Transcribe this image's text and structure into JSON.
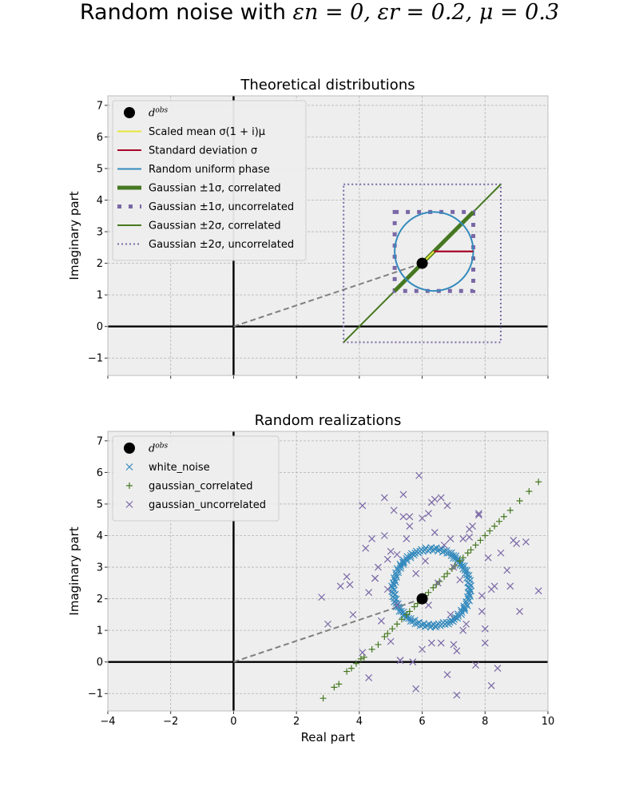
{
  "figure": {
    "title_text": "Random noise with ",
    "title_math": "εn = 0, εr = 0.2, μ = 0.3"
  },
  "chart_data": [
    {
      "type": "line",
      "title": "Theoretical distributions",
      "xlabel": "",
      "ylabel": "Imaginary part",
      "xlim": [
        -4,
        10
      ],
      "ylim": [
        -1.55,
        7.3
      ],
      "xticks": [
        -4,
        -2,
        0,
        2,
        4,
        6,
        8,
        10
      ],
      "yticks": [
        -1,
        0,
        1,
        2,
        3,
        4,
        5,
        6,
        7
      ],
      "show_xtick_labels": false,
      "grid": true,
      "legend_position": "top-left",
      "center": [
        6,
        2
      ],
      "sigma": 1.25,
      "mu": 0.3,
      "circle_radius": 1.25,
      "legend": [
        {
          "key": "dobs",
          "label": "d^obs",
          "color": "#000000",
          "style": "marker"
        },
        {
          "key": "mean",
          "label": "Scaled mean σ(1 + i)μ",
          "color": "#e5e53c",
          "style": "line"
        },
        {
          "key": "std",
          "label": "Standard deviation σ",
          "color": "#a60628",
          "style": "line"
        },
        {
          "key": "uniform",
          "label": "Random uniform phase",
          "color": "#348abd",
          "style": "line"
        },
        {
          "key": "g1c",
          "label": "Gaussian ±1σ, correlated",
          "color": "#467821",
          "style": "thick"
        },
        {
          "key": "g1u",
          "label": "Gaussian ±1σ, uncorrelated",
          "color": "#7a68a6",
          "style": "dotthick"
        },
        {
          "key": "g2c",
          "label": "Gaussian ±2σ, correlated",
          "color": "#467821",
          "style": "line"
        },
        {
          "key": "g2u",
          "label": "Gaussian ±2σ, uncorrelated",
          "color": "#7a68a6",
          "style": "dot"
        }
      ]
    },
    {
      "type": "scatter",
      "title": "Random realizations",
      "xlabel": "Real part",
      "ylabel": "Imaginary part",
      "xlim": [
        -4,
        10
      ],
      "ylim": [
        -1.55,
        7.3
      ],
      "xticks": [
        -4,
        -2,
        0,
        2,
        4,
        6,
        8,
        10
      ],
      "yticks": [
        -1,
        0,
        1,
        2,
        3,
        4,
        5,
        6,
        7
      ],
      "show_xtick_labels": true,
      "grid": true,
      "legend_position": "top-left",
      "center": [
        6,
        2
      ],
      "legend": [
        {
          "key": "dobs",
          "label": "d^obs",
          "color": "#000000",
          "style": "marker"
        },
        {
          "key": "white",
          "label": "white_noise",
          "color": "#348abd",
          "style": "x"
        },
        {
          "key": "gc",
          "label": "gaussian_correlated",
          "color": "#467821",
          "style": "plus"
        },
        {
          "key": "gu",
          "label": "gaussian_uncorrelated",
          "color": "#7a68a6",
          "style": "x"
        }
      ],
      "series": [
        {
          "name": "white_noise",
          "shape": "ring",
          "center": [
            6.3,
            2.35
          ],
          "radius": 1.25,
          "count": 150
        },
        {
          "name": "gaussian_correlated",
          "shape": "line",
          "x": [
            2.85,
            3.2,
            3.35,
            3.6,
            3.75,
            3.9,
            4.05,
            4.15,
            4.4,
            4.6,
            4.8,
            4.9,
            5.05,
            5.2,
            5.35,
            5.5,
            5.6,
            5.75,
            5.85,
            6.0,
            6.1,
            6.2,
            6.35,
            6.45,
            6.55,
            6.7,
            6.8,
            6.95,
            7.05,
            7.2,
            7.3,
            7.45,
            7.55,
            7.7,
            7.85,
            8.0,
            8.15,
            8.3,
            8.45,
            8.6,
            8.8,
            9.1,
            9.4,
            9.7
          ],
          "y": [
            -1.15,
            -0.8,
            -0.7,
            -0.3,
            -0.2,
            -0.05,
            0.1,
            0.15,
            0.4,
            0.55,
            0.8,
            0.9,
            1.05,
            1.2,
            1.35,
            1.5,
            1.6,
            1.75,
            1.85,
            2.0,
            2.1,
            2.2,
            2.35,
            2.45,
            2.55,
            2.7,
            2.8,
            2.95,
            3.05,
            3.2,
            3.3,
            3.45,
            3.55,
            3.7,
            3.85,
            4.0,
            4.15,
            4.3,
            4.45,
            4.6,
            4.8,
            5.1,
            5.4,
            5.7
          ]
        },
        {
          "name": "gaussian_uncorrelated",
          "x": [
            2.8,
            3.0,
            3.4,
            3.6,
            3.8,
            4.1,
            4.2,
            4.3,
            4.4,
            4.5,
            4.6,
            4.7,
            4.8,
            4.9,
            5.0,
            5.1,
            5.2,
            5.3,
            5.4,
            5.5,
            5.6,
            5.7,
            5.8,
            5.9,
            6.0,
            6.1,
            6.2,
            6.3,
            6.4,
            6.5,
            6.6,
            6.7,
            6.8,
            6.9,
            7.0,
            7.1,
            7.2,
            7.3,
            7.4,
            7.5,
            7.6,
            7.7,
            7.8,
            7.9,
            8.0,
            8.1,
            8.2,
            8.3,
            8.5,
            8.7,
            8.9,
            9.1,
            9.3,
            9.7,
            4.1,
            4.5,
            5.4,
            5.8,
            6.0,
            6.3,
            6.8,
            7.0,
            7.3,
            7.8,
            8.2,
            8.8,
            4.8,
            5.2,
            6.6,
            7.5,
            8.0,
            3.7,
            4.3,
            5.6,
            6.2,
            7.1,
            7.9,
            8.4,
            9.0,
            5.0,
            6.9,
            5.3,
            6.4,
            4.9
          ],
          "y": [
            2.05,
            1.2,
            2.4,
            2.7,
            1.5,
            4.95,
            3.6,
            2.2,
            3.9,
            2.65,
            3.0,
            1.3,
            5.2,
            2.3,
            3.5,
            4.8,
            1.8,
            0.05,
            5.3,
            3.9,
            4.3,
            0.0,
            2.8,
            5.9,
            4.55,
            3.2,
            1.8,
            5.05,
            4.1,
            2.5,
            0.6,
            3.7,
            4.95,
            1.5,
            0.55,
            -1.05,
            2.6,
            3.9,
            1.2,
            4.2,
            4.3,
            -0.1,
            4.7,
            2.1,
            0.6,
            3.3,
            -0.75,
            2.4,
            3.45,
            2.9,
            3.85,
            1.6,
            3.8,
            2.25,
            0.3,
            2.65,
            4.6,
            -0.85,
            0.4,
            0.6,
            -0.4,
            3.0,
            1.0,
            4.65,
            2.3,
            2.4,
            4.0,
            3.4,
            5.2,
            3.95,
            1.05,
            2.45,
            -0.5,
            4.6,
            4.7,
            0.35,
            1.6,
            -0.2,
            3.75,
            0.65,
            3.9,
            0.05,
            5.15,
            3.25
          ]
        }
      ]
    }
  ]
}
